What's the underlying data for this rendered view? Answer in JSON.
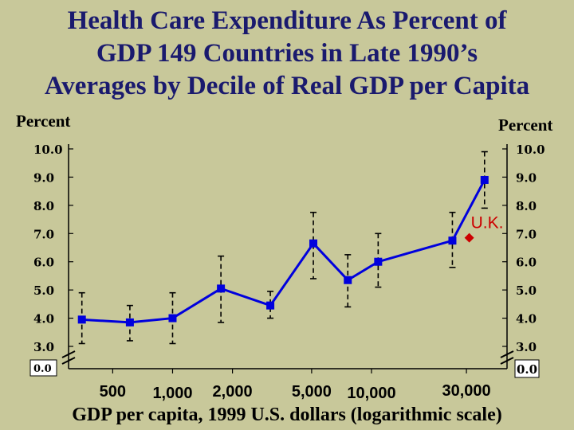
{
  "chart_data": {
    "type": "line",
    "title": "Health Care Expenditure As Percent of GDP 149 Countries in Late 1990’s Averages by Decile of Real GDP per Capita",
    "title_lines": [
      "Health Care Expenditure As Percent of",
      "GDP 149 Countries in Late 1990’s",
      "Averages by Decile of Real GDP per Capita"
    ],
    "ylabel_left": "Percent",
    "ylabel_right": "Percent",
    "xlabel": "GDP per capita, 1999 U.S. dollars (logarithmic scale)",
    "x_scale": "log",
    "xlim": [
      300,
      48000
    ],
    "ylim": [
      3.0,
      10.0
    ],
    "y_ticks": [
      "10.0",
      "9.0",
      "8.0",
      "7.0",
      "6.0",
      "5.0",
      "4.0",
      "3.0"
    ],
    "y_zero_label": "0.0",
    "x_ticks": [
      {
        "value": 500,
        "label": "500"
      },
      {
        "value": 1000,
        "label": "1,000"
      },
      {
        "value": 2000,
        "label": "2,000"
      },
      {
        "value": 5000,
        "label": "5,000"
      },
      {
        "value": 10000,
        "label": "10,000"
      },
      {
        "value": 30000,
        "label": "30,000"
      }
    ],
    "series": [
      {
        "name": "Decile averages",
        "color": "#0000dd",
        "x": [
          350,
          610,
          1000,
          1750,
          3100,
          5100,
          7600,
          10800,
          25500,
          37000
        ],
        "y": [
          3.95,
          3.85,
          4.0,
          5.05,
          4.45,
          6.65,
          5.35,
          6.0,
          6.75,
          8.9
        ],
        "err_low": [
          3.1,
          3.2,
          3.1,
          3.85,
          4.0,
          5.4,
          4.4,
          5.1,
          5.8,
          7.9
        ],
        "err_high": [
          4.9,
          4.45,
          4.9,
          6.2,
          4.95,
          7.75,
          6.25,
          7.0,
          7.75,
          9.9
        ]
      }
    ],
    "annotations": [
      {
        "label": "U.K.",
        "x": 31000,
        "y": 6.85,
        "color": "#cc0000"
      }
    ]
  }
}
